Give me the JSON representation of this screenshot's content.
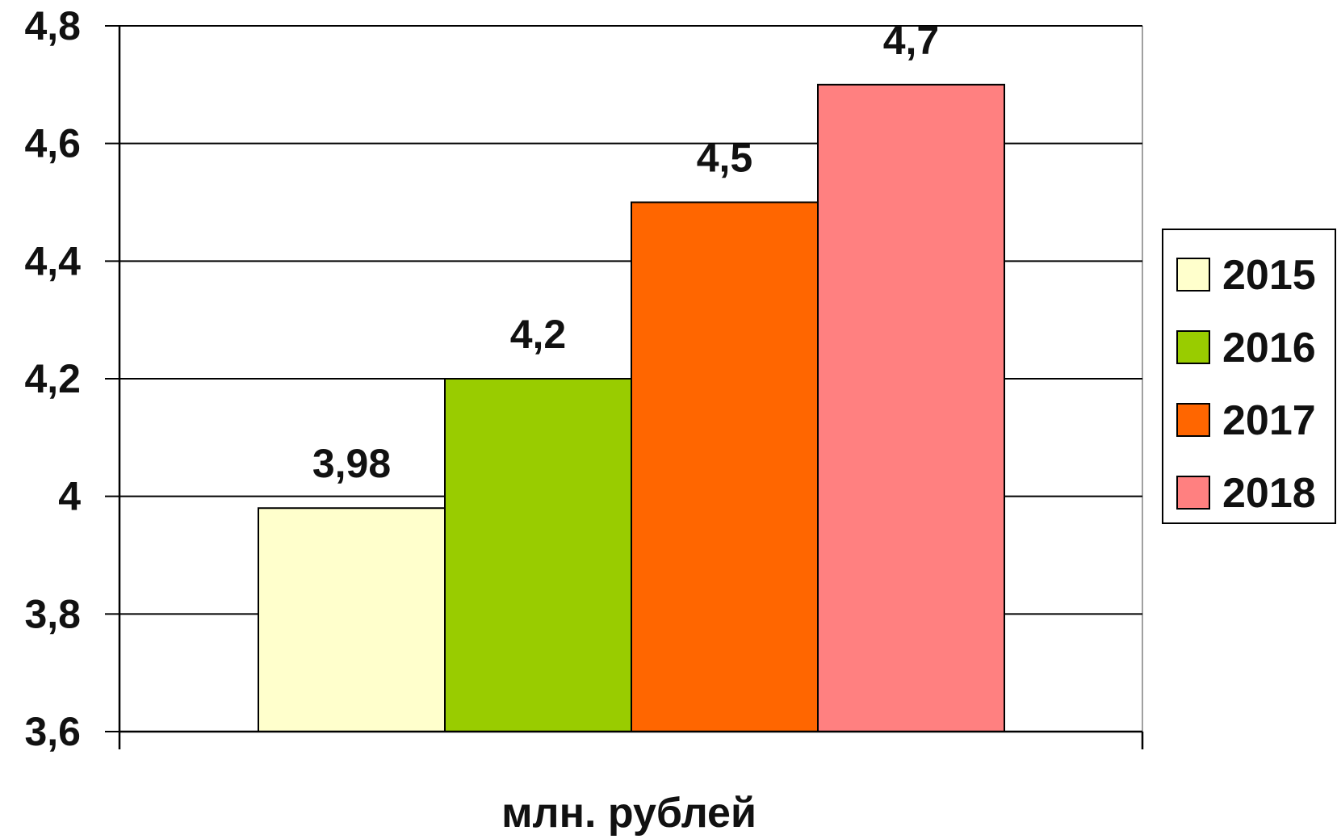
{
  "chart_data": {
    "type": "bar",
    "title": "",
    "xlabel": "млн. рублей",
    "ylabel": "",
    "ylim": [
      3.6,
      4.8
    ],
    "ytick_step": 0.2,
    "yticks": [
      "3,6",
      "3,8",
      "4",
      "4,2",
      "4,4",
      "4,6",
      "4,8"
    ],
    "grid": true,
    "legend_position": "right",
    "categories": [
      "млн. рублей"
    ],
    "series": [
      {
        "name": "2015",
        "values": [
          3.98
        ],
        "label": "3,98",
        "color": "#FFFFCC"
      },
      {
        "name": "2016",
        "values": [
          4.2
        ],
        "label": "4,2",
        "color": "#99CC00"
      },
      {
        "name": "2017",
        "values": [
          4.5
        ],
        "label": "4,5",
        "color": "#FF6600"
      },
      {
        "name": "2018",
        "values": [
          4.7
        ],
        "label": "4,7",
        "color": "#FF8080"
      }
    ]
  }
}
